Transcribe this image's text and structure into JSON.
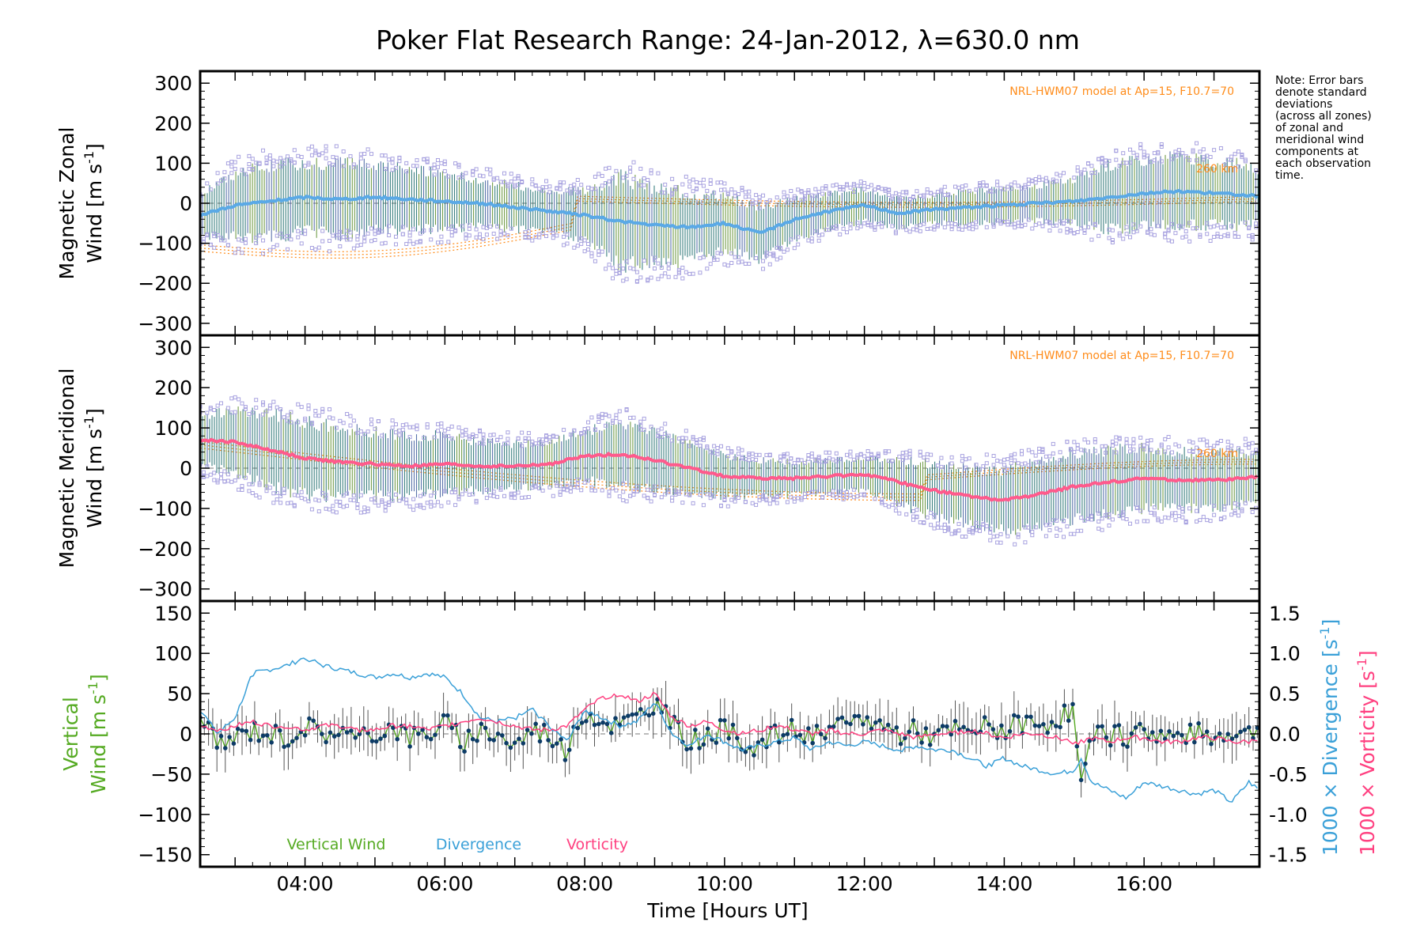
{
  "title": "Poker Flat Research Range: 24-Jan-2012, λ=630.0 nm",
  "note_lines": [
    "Note: Error bars",
    "denote standard",
    "deviations",
    "(across all zones)",
    "of zonal and",
    "meridional wind",
    "components at",
    "each observation",
    "time."
  ],
  "xlabel": "Time [Hours UT]",
  "x_ticks": [
    "04:00",
    "06:00",
    "08:00",
    "10:00",
    "12:00",
    "14:00",
    "16:00"
  ],
  "model_note": "NRL-HWM07 model at Ap=15, F10.7=70",
  "model_height_label": "260 km",
  "colors": {
    "zonal_mean": "#5aa9e6",
    "meridional_mean": "#ff5a8c",
    "vertical": "#55aa22",
    "divergence": "#3aa0d8",
    "vorticity": "#ff4080",
    "model": "#ff8c1a",
    "scatter": "#a9a3e0",
    "points": "#0d3b66",
    "errorbar": "#555555"
  },
  "chart_data": [
    {
      "type": "line",
      "panel": "zonal",
      "ylabel_line1": "Magnetic Zonal",
      "ylabel_line2": "Wind [m s",
      "ylabel_sup": "-1",
      "ylabel_end": "]",
      "xlim": [
        2.5,
        17.65
      ],
      "ylim": [
        -330,
        330
      ],
      "y_ticks": [
        300,
        200,
        100,
        0,
        -100,
        -200,
        -300
      ],
      "series": [
        {
          "x": [
            2.5,
            3.0,
            3.5,
            4.0,
            4.5,
            5.0,
            5.5,
            6.0,
            6.5,
            7.0,
            7.5,
            8.0,
            8.5,
            9.0,
            9.5,
            10.0,
            10.5,
            11.0,
            11.5,
            12.0,
            12.5,
            13.0,
            13.5,
            14.0,
            14.5,
            15.0,
            15.5,
            16.0,
            16.5,
            17.0,
            17.5,
            17.65
          ],
          "y": [
            -30,
            -5,
            5,
            15,
            10,
            15,
            10,
            5,
            0,
            -10,
            -20,
            -30,
            -45,
            -55,
            -60,
            -50,
            -75,
            -40,
            -20,
            -5,
            -25,
            -15,
            -10,
            -5,
            0,
            5,
            15,
            25,
            30,
            25,
            20,
            15
          ],
          "spread": [
            50,
            80,
            90,
            85,
            90,
            80,
            75,
            70,
            60,
            55,
            50,
            60,
            110,
            90,
            85,
            70,
            65,
            50,
            45,
            40,
            35,
            35,
            40,
            40,
            45,
            55,
            80,
            85,
            85,
            80,
            75,
            70
          ]
        }
      ]
    },
    {
      "type": "line",
      "panel": "meridional",
      "ylabel_line1": "Magnetic Meridional",
      "ylabel_line2": "Wind [m s",
      "ylabel_sup": "-1",
      "ylabel_end": "]",
      "xlim": [
        2.5,
        17.65
      ],
      "ylim": [
        -330,
        330
      ],
      "y_ticks": [
        300,
        200,
        100,
        0,
        -100,
        -200,
        -300
      ],
      "series": [
        {
          "x": [
            2.5,
            3.0,
            3.5,
            4.0,
            4.5,
            5.0,
            5.5,
            6.0,
            6.5,
            7.0,
            7.5,
            8.0,
            8.5,
            9.0,
            9.5,
            10.0,
            10.5,
            11.0,
            11.5,
            12.0,
            12.5,
            13.0,
            13.5,
            14.0,
            14.5,
            15.0,
            15.5,
            16.0,
            16.5,
            17.0,
            17.5,
            17.65
          ],
          "y": [
            70,
            65,
            45,
            25,
            15,
            10,
            5,
            10,
            5,
            5,
            10,
            30,
            35,
            20,
            0,
            -20,
            -25,
            -25,
            -20,
            -15,
            -35,
            -55,
            -70,
            -80,
            -65,
            -45,
            -35,
            -25,
            -30,
            -30,
            -25,
            -20
          ],
          "spread": [
            60,
            80,
            90,
            90,
            85,
            80,
            75,
            70,
            60,
            55,
            55,
            60,
            80,
            70,
            60,
            50,
            45,
            40,
            40,
            40,
            55,
            65,
            70,
            75,
            80,
            80,
            80,
            75,
            70,
            70,
            65,
            60
          ]
        }
      ]
    },
    {
      "type": "line",
      "panel": "vertical",
      "ylabel_line1": "Vertical",
      "ylabel_line2": "Wind [m s",
      "ylabel_sup": "-1",
      "ylabel_end": "]",
      "y2label_line1": "1000 × Divergence [s",
      "y2label_line2": "1000 × Vorticity [s",
      "y2label_sup": "-1",
      "y2label_end": "]",
      "xlim": [
        2.5,
        17.65
      ],
      "ylim": [
        -165,
        165
      ],
      "y_ticks": [
        150,
        100,
        50,
        0,
        -50,
        -100,
        -150
      ],
      "y2lim": [
        -1.65,
        1.65
      ],
      "y2_ticks": [
        "1.5",
        "1.0",
        "0.5",
        "0.0",
        "-0.5",
        "-1.0",
        "-1.5"
      ],
      "y2_tick_values": [
        1.5,
        1.0,
        0.5,
        0.0,
        -0.5,
        -1.0,
        -1.5
      ],
      "legend": [
        "Vertical Wind",
        "Divergence",
        "Vorticity"
      ],
      "series": [
        {
          "name": "Vertical Wind",
          "x": [
            2.5,
            2.75,
            3.0,
            3.25,
            3.5,
            3.75,
            4.0,
            4.25,
            4.5,
            4.75,
            5.0,
            5.25,
            5.5,
            5.75,
            6.0,
            6.25,
            6.5,
            6.75,
            7.0,
            7.25,
            7.5,
            7.75,
            8.0,
            8.25,
            8.5,
            8.75,
            9.0,
            9.25,
            9.5,
            9.75,
            10.0,
            10.25,
            10.5,
            10.75,
            11.0,
            11.25,
            11.5,
            11.75,
            12.0,
            12.25,
            12.5,
            12.75,
            13.0,
            13.25,
            13.5,
            13.75,
            14.0,
            14.25,
            14.5,
            14.75,
            15.0,
            15.1,
            15.25,
            15.5,
            15.75,
            16.0,
            16.25,
            16.5,
            16.75,
            17.0,
            17.25,
            17.5,
            17.65
          ],
          "y": [
            15,
            -15,
            -5,
            5,
            0,
            -5,
            10,
            0,
            5,
            -10,
            0,
            10,
            -5,
            0,
            15,
            -10,
            5,
            0,
            -15,
            5,
            0,
            -25,
            30,
            15,
            10,
            20,
            40,
            10,
            -10,
            0,
            5,
            -10,
            -15,
            0,
            5,
            -5,
            0,
            10,
            20,
            10,
            0,
            5,
            -5,
            5,
            0,
            10,
            5,
            15,
            10,
            20,
            30,
            -65,
            -5,
            0,
            -5,
            5,
            0,
            -5,
            0,
            -5,
            5,
            0,
            10
          ]
        },
        {
          "name": "Divergence",
          "x": [
            2.5,
            2.75,
            3.0,
            3.25,
            3.5,
            3.75,
            4.0,
            4.25,
            4.5,
            4.75,
            5.0,
            5.25,
            5.5,
            5.75,
            6.0,
            6.25,
            6.5,
            6.75,
            7.0,
            7.25,
            7.5,
            7.75,
            8.0,
            8.25,
            8.5,
            8.75,
            9.0,
            9.25,
            9.5,
            9.75,
            10.0,
            10.25,
            10.5,
            10.75,
            11.0,
            11.25,
            11.5,
            11.75,
            12.0,
            12.25,
            12.5,
            12.75,
            13.0,
            13.25,
            13.5,
            13.75,
            14.0,
            14.25,
            14.5,
            14.75,
            15.0,
            15.1,
            15.25,
            15.5,
            15.75,
            16.0,
            16.25,
            16.5,
            16.75,
            17.0,
            17.25,
            17.5,
            17.65
          ],
          "y": [
            0.3,
            0.0,
            0.2,
            0.75,
            0.8,
            0.85,
            0.95,
            0.85,
            0.8,
            0.75,
            0.7,
            0.75,
            0.7,
            0.75,
            0.7,
            0.5,
            0.2,
            0.15,
            0.2,
            0.3,
            0.1,
            -0.1,
            0.3,
            0.2,
            0.1,
            0.15,
            0.4,
            0.0,
            -0.15,
            0.0,
            -0.1,
            -0.2,
            -0.15,
            -0.1,
            -0.05,
            -0.2,
            -0.1,
            -0.15,
            -0.1,
            -0.15,
            -0.2,
            -0.15,
            -0.2,
            -0.2,
            -0.3,
            -0.4,
            -0.3,
            -0.4,
            -0.45,
            -0.5,
            -0.45,
            -0.3,
            -0.6,
            -0.7,
            -0.8,
            -0.6,
            -0.65,
            -0.7,
            -0.75,
            -0.7,
            -0.85,
            -0.6,
            -0.7
          ]
        },
        {
          "name": "Vorticity",
          "x": [
            2.5,
            2.75,
            3.0,
            3.25,
            3.5,
            3.75,
            4.0,
            4.25,
            4.5,
            4.75,
            5.0,
            5.25,
            5.5,
            5.75,
            6.0,
            6.25,
            6.5,
            6.75,
            7.0,
            7.25,
            7.5,
            7.75,
            8.0,
            8.25,
            8.5,
            8.75,
            9.0,
            9.25,
            9.5,
            9.75,
            10.0,
            10.25,
            10.5,
            10.75,
            11.0,
            11.25,
            11.5,
            11.75,
            12.0,
            12.25,
            12.5,
            12.75,
            13.0,
            13.25,
            13.5,
            13.75,
            14.0,
            14.25,
            14.5,
            14.75,
            15.0,
            15.1,
            15.25,
            15.5,
            15.75,
            16.0,
            16.25,
            16.5,
            16.75,
            17.0,
            17.25,
            17.5,
            17.65
          ],
          "y": [
            0.1,
            0.05,
            0.1,
            0.15,
            0.1,
            0.1,
            0.05,
            0.1,
            0.1,
            0.05,
            0.05,
            0.1,
            0.1,
            0.05,
            0.1,
            0.15,
            0.2,
            0.15,
            0.1,
            0.05,
            0.05,
            0.1,
            0.3,
            0.45,
            0.5,
            0.4,
            0.5,
            0.2,
            0.1,
            0.15,
            0.05,
            0.0,
            0.05,
            0.1,
            0.05,
            0.0,
            0.05,
            0.0,
            0.0,
            0.05,
            0.0,
            -0.05,
            0.0,
            0.0,
            0.05,
            0.0,
            -0.05,
            0.0,
            0.0,
            -0.05,
            -0.1,
            -0.1,
            -0.05,
            -0.1,
            -0.05,
            -0.05,
            -0.1,
            -0.1,
            -0.05,
            -0.05,
            -0.1,
            -0.1,
            -0.05
          ]
        }
      ]
    }
  ]
}
